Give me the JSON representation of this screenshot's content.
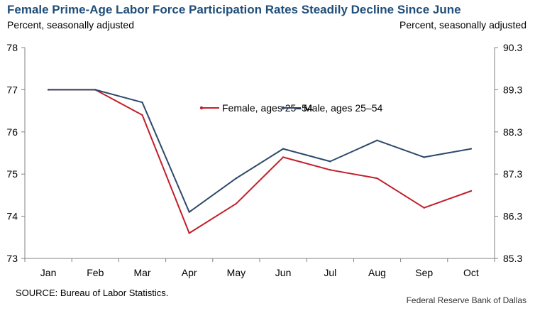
{
  "chart_title": "Female Prime-Age Labor Force Participation Rates Steadily Decline Since June",
  "left_axis_note": "Percent, seasonally adjusted",
  "right_axis_note": "Percent, seasonally adjusted",
  "source": "SOURCE: Bureau of Labor Statistics.",
  "credit": "Federal Reserve  Bank of Dallas",
  "colors": {
    "female": "#c0202a",
    "male": "#2e4a6b",
    "title": "#1f4e79"
  },
  "chart_data": {
    "type": "line",
    "title": "Female Prime-Age Labor Force Participation Rates Steadily Decline Since June",
    "categories": [
      "Jan",
      "Feb",
      "Mar",
      "Apr",
      "May",
      "Jun",
      "Jul",
      "Aug",
      "Sep",
      "Oct"
    ],
    "ylim": [
      73,
      78
    ],
    "yticks": [
      "73",
      "74",
      "75",
      "76",
      "77",
      "78"
    ],
    "y2lim": [
      85.3,
      90.3
    ],
    "y2ticks": [
      "85.3",
      "86.3",
      "87.3",
      "88.3",
      "89.3",
      "90.3"
    ],
    "grid": false,
    "legend_position": "top-center",
    "series": [
      {
        "name": "Female, ages 25–54",
        "axis": "left",
        "values": [
          77.0,
          77.0,
          76.4,
          73.6,
          74.3,
          75.4,
          75.1,
          74.9,
          74.2,
          74.6
        ]
      },
      {
        "name": "Male, ages 25–54",
        "axis": "right",
        "values": [
          89.3,
          89.3,
          89.0,
          86.4,
          87.2,
          87.9,
          87.6,
          88.1,
          87.7,
          87.9
        ]
      }
    ]
  }
}
